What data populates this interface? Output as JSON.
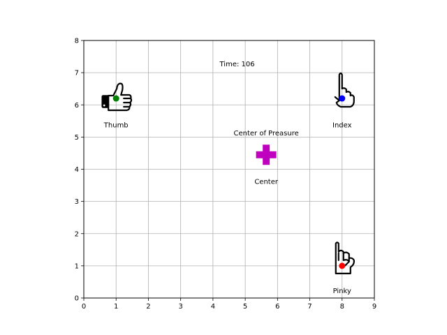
{
  "chart_data": {
    "type": "scatter",
    "title": "",
    "xlabel": "",
    "ylabel": "",
    "xlim": [
      0,
      9
    ],
    "ylim": [
      0,
      8
    ],
    "xticks": [
      "0",
      "1",
      "2",
      "3",
      "4",
      "5",
      "6",
      "7",
      "8",
      "9"
    ],
    "yticks": [
      "0",
      "1",
      "2",
      "3",
      "4",
      "5",
      "6",
      "7",
      "8"
    ],
    "grid": true,
    "legend": "none",
    "time_text": {
      "text": "Time: 106",
      "x": 4.75,
      "y": 7.2
    },
    "points": [
      {
        "name": "Thumb",
        "x": 1.0,
        "y": 6.2,
        "color": "#008000",
        "icon": "thumbs-up-icon",
        "label_y": 5.3
      },
      {
        "name": "Index",
        "x": 8.0,
        "y": 6.2,
        "color": "#0000ff",
        "icon": "pointing-up-hand-icon",
        "label_y": 5.3
      },
      {
        "name": "Pinky",
        "x": 8.0,
        "y": 1.0,
        "color": "#ff0000",
        "icon": "pinky-hand-icon",
        "label_y": 0.15
      }
    ],
    "center": {
      "x": 5.65,
      "y": 4.45,
      "color": "#bf00bf",
      "marker": "plus",
      "label_above": "Center of Preasure",
      "label_above_y": 5.05,
      "label_below": "Center",
      "label_below_y": 3.55
    }
  }
}
